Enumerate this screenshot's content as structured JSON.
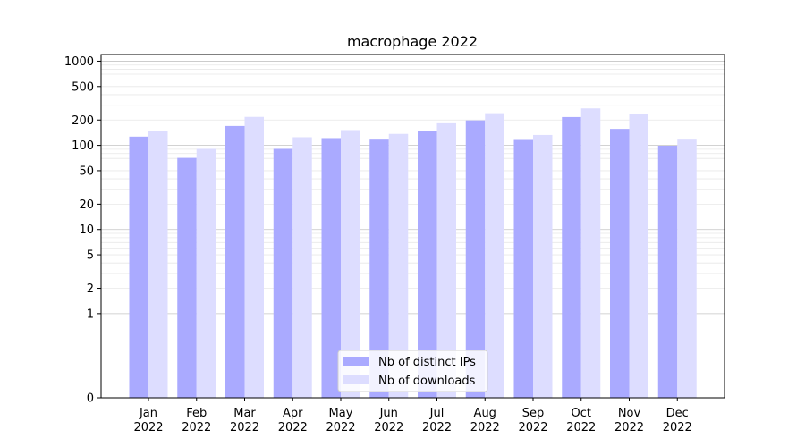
{
  "chart_data": {
    "type": "bar",
    "title": "macrophage 2022",
    "xlabel": "",
    "ylabel": "",
    "yscale": "symlog",
    "ylim": [
      0,
      1200
    ],
    "yticks": [
      0,
      1,
      2,
      5,
      10,
      20,
      50,
      100,
      200,
      500,
      1000
    ],
    "grid": true,
    "legend_position": "lower-center",
    "categories": [
      "Jan\n2022",
      "Feb\n2022",
      "Mar\n2022",
      "Apr\n2022",
      "May\n2022",
      "Jun\n2022",
      "Jul\n2022",
      "Aug\n2022",
      "Sep\n2022",
      "Oct\n2022",
      "Nov\n2022",
      "Dec\n2022"
    ],
    "series": [
      {
        "name": "Nb of distinct IPs",
        "color": "#aaaaff",
        "values": [
          127,
          71,
          170,
          91,
          122,
          117,
          150,
          198,
          116,
          217,
          157,
          99
        ]
      },
      {
        "name": "Nb of downloads",
        "color": "#ddddff",
        "values": [
          148,
          91,
          218,
          125,
          152,
          137,
          183,
          241,
          133,
          275,
          236,
          117
        ]
      }
    ]
  }
}
